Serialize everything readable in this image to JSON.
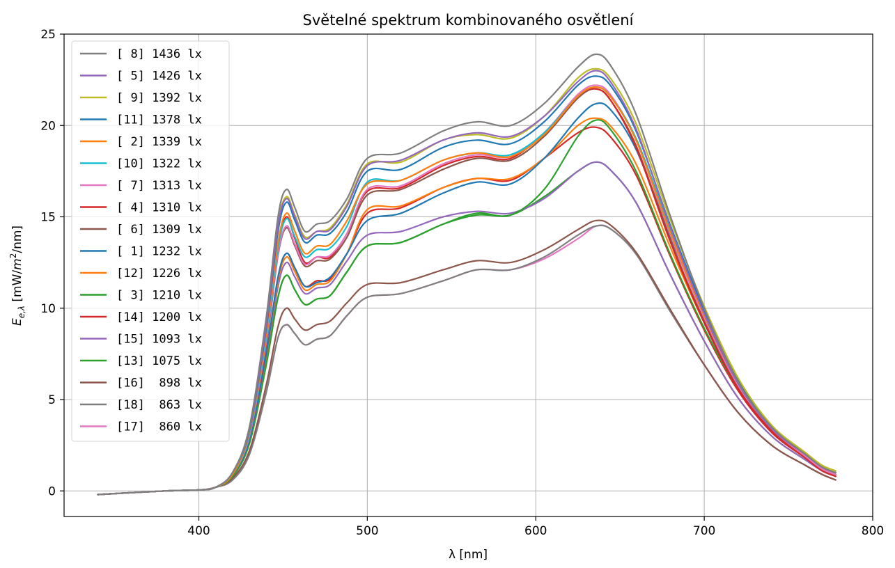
{
  "chart_data": {
    "type": "line",
    "title": "Světelné spektrum kombinovaného osvětlení",
    "xlabel": "λ [nm]",
    "ylabel": {
      "main": "E",
      "sub": "e,λ",
      "rest1": " [mW/",
      "mid": "m",
      "sup": "2",
      "rest2": "/nm]"
    },
    "xlim": [
      320,
      800
    ],
    "ylim": [
      -1.4,
      25
    ],
    "xticks": [
      400,
      500,
      600,
      700,
      800
    ],
    "yticks": [
      0,
      5,
      10,
      15,
      20,
      25
    ],
    "grid": true,
    "legend_position": "upper-left",
    "x": [
      340,
      380,
      400,
      410,
      420,
      430,
      440,
      447,
      452,
      457,
      463,
      470,
      478,
      488,
      500,
      520,
      545,
      565,
      585,
      605,
      625,
      636,
      645,
      660,
      680,
      700,
      720,
      740,
      760,
      770,
      778
    ],
    "series": [
      {
        "name": "[ 8] 1436 lx",
        "color": "#7f7f7f",
        "values": [
          -0.2,
          0.0,
          0.05,
          0.2,
          1.0,
          3.5,
          9.5,
          15.0,
          16.5,
          15.5,
          14.2,
          14.6,
          14.8,
          16.0,
          18.2,
          18.5,
          19.7,
          20.2,
          20.0,
          21.2,
          23.2,
          23.9,
          23.2,
          20.5,
          15.0,
          10.0,
          6.0,
          3.5,
          2.0,
          1.3,
          1.0
        ]
      },
      {
        "name": "[ 5] 1426 lx",
        "color": "#9467bd",
        "values": [
          -0.2,
          0.0,
          0.05,
          0.2,
          1.0,
          3.4,
          9.1,
          14.5,
          16.0,
          15.0,
          13.8,
          14.2,
          14.3,
          15.6,
          17.8,
          18.1,
          19.2,
          19.6,
          19.4,
          20.5,
          22.4,
          23.0,
          22.3,
          19.7,
          14.4,
          9.7,
          5.9,
          3.4,
          2.0,
          1.3,
          1.0
        ]
      },
      {
        "name": "[ 9] 1392 lx",
        "color": "#bcbd22",
        "values": [
          -0.2,
          0.0,
          0.05,
          0.2,
          1.0,
          3.4,
          9.2,
          14.6,
          16.1,
          15.1,
          13.9,
          14.2,
          14.4,
          15.7,
          17.9,
          18.0,
          19.2,
          19.5,
          19.3,
          20.5,
          22.6,
          23.1,
          22.5,
          20.0,
          14.8,
          10.1,
          6.2,
          3.6,
          2.1,
          1.4,
          1.1
        ]
      },
      {
        "name": "[11] 1378 lx",
        "color": "#1f77b4",
        "values": [
          -0.2,
          0.0,
          0.05,
          0.2,
          1.0,
          3.3,
          8.9,
          14.2,
          15.8,
          14.8,
          13.6,
          14.0,
          14.1,
          15.3,
          17.5,
          17.6,
          18.8,
          19.2,
          19.0,
          20.2,
          22.2,
          22.7,
          22.1,
          19.6,
          14.5,
          9.9,
          6.1,
          3.5,
          2.0,
          1.3,
          1.0
        ]
      },
      {
        "name": "[ 2] 1339 lx",
        "color": "#ff7f0e",
        "values": [
          -0.2,
          0.0,
          0.05,
          0.2,
          0.9,
          3.2,
          8.6,
          13.6,
          15.2,
          14.2,
          13.0,
          13.4,
          13.5,
          14.8,
          16.8,
          17.0,
          18.1,
          18.5,
          18.3,
          19.5,
          21.6,
          22.1,
          21.5,
          19.1,
          14.1,
          9.6,
          5.9,
          3.4,
          2.0,
          1.3,
          1.0
        ]
      },
      {
        "name": "[10] 1322 lx",
        "color": "#17becf",
        "values": [
          -0.2,
          0.0,
          0.05,
          0.2,
          0.9,
          3.1,
          8.4,
          13.3,
          14.9,
          13.9,
          12.8,
          13.2,
          13.3,
          14.5,
          16.9,
          17.0,
          18.1,
          18.5,
          18.4,
          19.6,
          21.6,
          22.1,
          21.5,
          19.2,
          14.3,
          9.8,
          6.0,
          3.5,
          2.0,
          1.3,
          1.0
        ]
      },
      {
        "name": "[ 7] 1313 lx",
        "color": "#e377c2",
        "values": [
          -0.2,
          0.0,
          0.05,
          0.2,
          0.9,
          3.0,
          8.2,
          13.0,
          14.5,
          13.5,
          12.4,
          12.8,
          12.9,
          14.1,
          16.5,
          16.7,
          17.9,
          18.4,
          18.3,
          19.6,
          21.7,
          22.2,
          21.6,
          19.1,
          14.0,
          9.5,
          5.8,
          3.4,
          1.9,
          1.2,
          0.9
        ]
      },
      {
        "name": "[ 4] 1310 lx",
        "color": "#d62728",
        "values": [
          -0.2,
          0.0,
          0.05,
          0.2,
          0.9,
          3.0,
          8.1,
          13.3,
          15.0,
          13.8,
          12.5,
          12.8,
          12.8,
          14.1,
          16.4,
          16.6,
          17.8,
          18.3,
          18.2,
          19.6,
          21.6,
          22.0,
          21.3,
          18.7,
          13.6,
          9.2,
          5.6,
          3.3,
          1.9,
          1.2,
          0.9
        ]
      },
      {
        "name": "[ 6] 1309 lx",
        "color": "#8c564b",
        "values": [
          -0.2,
          0.0,
          0.05,
          0.2,
          0.9,
          3.0,
          8.0,
          12.9,
          14.4,
          13.4,
          12.3,
          12.6,
          12.7,
          13.9,
          16.2,
          16.5,
          17.6,
          18.2,
          18.1,
          19.4,
          21.5,
          22.0,
          21.3,
          18.8,
          13.7,
          9.3,
          5.7,
          3.3,
          1.9,
          1.2,
          0.9
        ]
      },
      {
        "name": "[ 1] 1232 lx",
        "color": "#1f77b4",
        "values": [
          -0.2,
          0.0,
          0.05,
          0.2,
          0.9,
          2.8,
          7.5,
          11.7,
          13.0,
          12.2,
          11.2,
          11.4,
          11.7,
          13.0,
          14.8,
          15.2,
          16.3,
          16.9,
          16.8,
          18.2,
          20.4,
          21.2,
          20.8,
          18.6,
          13.9,
          9.6,
          6.0,
          3.5,
          2.0,
          1.3,
          1.0
        ]
      },
      {
        "name": "[12] 1226 lx",
        "color": "#ff7f0e",
        "values": [
          -0.2,
          0.0,
          0.05,
          0.2,
          0.9,
          2.8,
          7.4,
          11.5,
          12.8,
          12.0,
          11.0,
          11.3,
          11.5,
          13.0,
          15.4,
          15.6,
          16.6,
          17.1,
          17.1,
          18.2,
          20.0,
          20.4,
          19.9,
          17.8,
          13.3,
          9.2,
          5.8,
          3.4,
          2.0,
          1.3,
          1.0
        ]
      },
      {
        "name": "[ 3] 1210 lx",
        "color": "#2ca02c",
        "values": [
          -0.2,
          0.0,
          0.05,
          0.2,
          0.8,
          2.6,
          6.9,
          10.6,
          11.8,
          11.0,
          10.2,
          10.5,
          10.7,
          12.0,
          13.4,
          13.6,
          14.6,
          15.2,
          15.1,
          16.5,
          19.4,
          20.3,
          19.7,
          17.4,
          12.9,
          8.9,
          5.6,
          3.3,
          1.9,
          1.2,
          0.9
        ]
      },
      {
        "name": "[14] 1200 lx",
        "color": "#d62728",
        "values": [
          -0.2,
          0.0,
          0.05,
          0.2,
          0.9,
          2.8,
          7.4,
          11.7,
          13.0,
          12.2,
          11.2,
          11.5,
          11.6,
          13.0,
          15.2,
          15.5,
          16.6,
          17.1,
          17.0,
          18.2,
          19.6,
          19.9,
          19.3,
          17.2,
          12.8,
          8.8,
          5.5,
          3.2,
          1.8,
          1.1,
          0.8
        ]
      },
      {
        "name": "[15] 1093 lx",
        "color": "#9467bd",
        "values": [
          -0.2,
          0.0,
          0.05,
          0.2,
          0.8,
          2.6,
          7.1,
          11.2,
          12.5,
          11.7,
          10.8,
          11.1,
          11.3,
          12.6,
          14.0,
          14.2,
          15.0,
          15.3,
          15.2,
          16.0,
          17.5,
          18.0,
          17.5,
          15.7,
          11.8,
          8.2,
          5.1,
          3.0,
          1.7,
          1.1,
          0.8
        ]
      },
      {
        "name": "[13] 1075 lx",
        "color": "#2ca02c",
        "values": [
          -0.2,
          0.0,
          0.05,
          0.2,
          0.8,
          2.6,
          7.0,
          10.6,
          11.8,
          11.0,
          10.2,
          10.5,
          10.7,
          12.0,
          13.4,
          13.6,
          14.6,
          15.1,
          15.1,
          16.1,
          17.5,
          18.0,
          17.5,
          15.7,
          11.8,
          8.2,
          5.1,
          3.0,
          1.7,
          1.1,
          0.8
        ]
      },
      {
        "name": "[16]  898 lx",
        "color": "#8c564b",
        "values": [
          -0.2,
          0.0,
          0.05,
          0.2,
          0.7,
          2.2,
          5.8,
          9.0,
          10.0,
          9.4,
          8.8,
          9.1,
          9.3,
          10.3,
          11.3,
          11.4,
          12.1,
          12.6,
          12.5,
          13.2,
          14.3,
          14.8,
          14.5,
          13.0,
          9.9,
          6.9,
          4.3,
          2.5,
          1.4,
          0.9,
          0.6
        ]
      },
      {
        "name": "[18]  863 lx",
        "color": "#7f7f7f",
        "values": [
          -0.2,
          0.0,
          0.05,
          0.2,
          0.6,
          2.0,
          5.4,
          8.4,
          9.1,
          8.6,
          8.0,
          8.3,
          8.5,
          9.6,
          10.6,
          10.8,
          11.5,
          12.1,
          12.1,
          12.8,
          14.0,
          14.5,
          14.3,
          12.9,
          9.8,
          6.9,
          4.3,
          2.5,
          1.4,
          0.9,
          0.6
        ]
      },
      {
        "name": "[17]  860 lx",
        "color": "#e377c2",
        "values": [
          -0.2,
          0.0,
          0.05,
          0.2,
          0.6,
          2.0,
          5.4,
          8.4,
          9.1,
          8.6,
          8.0,
          8.3,
          8.5,
          9.6,
          10.6,
          10.8,
          11.5,
          12.1,
          12.1,
          12.7,
          13.8,
          14.5,
          14.3,
          12.9,
          9.8,
          6.9,
          4.3,
          2.5,
          1.4,
          0.9,
          0.6
        ]
      }
    ]
  }
}
